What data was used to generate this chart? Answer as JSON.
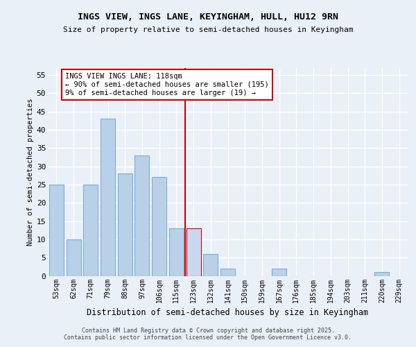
{
  "title1": "INGS VIEW, INGS LANE, KEYINGHAM, HULL, HU12 9RN",
  "title2": "Size of property relative to semi-detached houses in Keyingham",
  "xlabel": "Distribution of semi-detached houses by size in Keyingham",
  "ylabel": "Number of semi-detached properties",
  "categories": [
    "53sqm",
    "62sqm",
    "71sqm",
    "79sqm",
    "88sqm",
    "97sqm",
    "106sqm",
    "115sqm",
    "123sqm",
    "132sqm",
    "141sqm",
    "150sqm",
    "159sqm",
    "167sqm",
    "176sqm",
    "185sqm",
    "194sqm",
    "203sqm",
    "211sqm",
    "220sqm",
    "229sqm"
  ],
  "values": [
    25,
    10,
    25,
    43,
    28,
    33,
    27,
    13,
    13,
    6,
    2,
    0,
    0,
    2,
    0,
    0,
    0,
    0,
    0,
    1,
    0
  ],
  "bar_color": "#b8d0e8",
  "bar_edge_color": "#7aafd4",
  "highlight_bar_color": "#c8d8f0",
  "highlight_bar_edge_color": "#cc0000",
  "highlight_index": 8,
  "vline_x": 7.5,
  "vline_color": "#cc0000",
  "annotation_title": "INGS VIEW INGS LANE: 118sqm",
  "annotation_line1": "← 90% of semi-detached houses are smaller (195)",
  "annotation_line2": "9% of semi-detached houses are larger (19) →",
  "annotation_box_color": "#ffffff",
  "annotation_box_edge": "#cc0000",
  "ylim": [
    0,
    57
  ],
  "yticks": [
    0,
    5,
    10,
    15,
    20,
    25,
    30,
    35,
    40,
    45,
    50,
    55
  ],
  "background_color": "#eaf0f8",
  "grid_color": "#ffffff",
  "footer_line1": "Contains HM Land Registry data © Crown copyright and database right 2025.",
  "footer_line2": "Contains public sector information licensed under the Open Government Licence v3.0."
}
